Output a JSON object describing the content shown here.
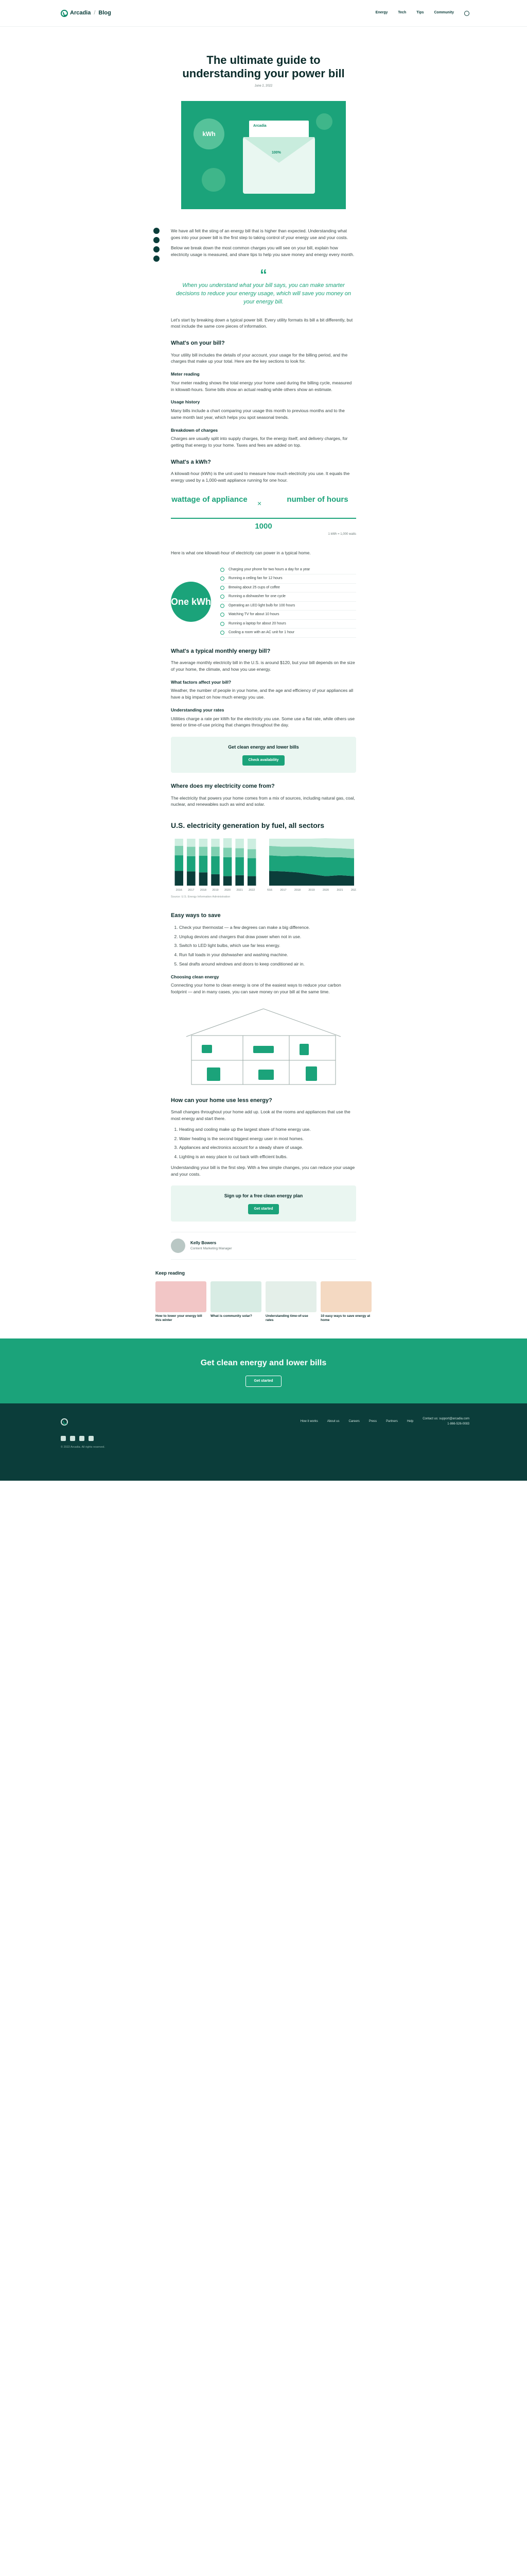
{
  "header": {
    "brand": "Arcadia",
    "section": "Blog",
    "nav": [
      "Energy",
      "Tech",
      "Tips",
      "Community"
    ]
  },
  "hero": {
    "title": "The ultimate guide to understanding your power bill",
    "date": "June 2, 2022"
  },
  "hero_art": {
    "kwh_label": "kWh",
    "bill_label": "Arcadia",
    "gauge_label": "100%"
  },
  "article": {
    "intro": [
      "We have all felt the sting of an energy bill that is higher than expected. Understanding what goes into your power bill is the first step to taking control of your energy use and your costs.",
      "Below we break down the most common charges you will see on your bill, explain how electricity usage is measured, and share tips to help you save money and energy every month."
    ],
    "quote": "When you understand what your bill says, you can make smarter decisions to reduce your energy usage, which will save you money on your energy bill.",
    "section_intro": "Let's start by breaking down a typical power bill. Every utility formats its bill a bit differently, but most include the same core pieces of information.",
    "h_read": "What's on your bill?",
    "read_text": "Your utility bill includes the details of your account, your usage for the billing period, and the charges that make up your total. Here are the key sections to look for.",
    "h_meter": "Meter reading",
    "meter_text": "Your meter reading shows the total energy your home used during the billing cycle, measured in kilowatt-hours. Some bills show an actual reading while others show an estimate.",
    "h_usage": "Usage history",
    "usage_text": "Many bills include a chart comparing your usage this month to previous months and to the same month last year, which helps you spot seasonal trends.",
    "h_breakdown": "Breakdown of charges",
    "breakdown_text": "Charges are usually split into supply charges, for the energy itself, and delivery charges, for getting that energy to your home. Taxes and fees are added on top.",
    "h_kwh": "What's a kWh?",
    "kwh_text": "A kilowatt-hour (kWh) is the unit used to measure how much electricity you use. It equals the energy used by a 1,000-watt appliance running for one hour.",
    "formula_left": "wattage of appliance",
    "formula_times": "×",
    "formula_right": "number of hours",
    "formula_den": "1000",
    "formula_note": "1 kWh = 1,000 watts",
    "kwh_after": "Here is what one kilowatt-hour of electricity can power in a typical home.",
    "kwh_circle": "One kWh",
    "kwh_items": [
      "Charging your phone for two hours a day for a year",
      "Running a ceiling fan for 12 hours",
      "Brewing about 25 cups of coffee",
      "Running a dishwasher for one cycle",
      "Operating an LED light bulb for 100 hours",
      "Watching TV for about 10 hours",
      "Running a laptop for about 20 hours",
      "Cooling a room with an AC unit for 1 hour"
    ],
    "h_average": "What's a typical monthly energy bill?",
    "average_text": "The average monthly electricity bill in the U.S. is around $120, but your bill depends on the size of your home, the climate, and how you use energy.",
    "h_factors": "What factors affect your bill?",
    "factors_text": "Weather, the number of people in your home, and the age and efficiency of your appliances all have a big impact on how much energy you use.",
    "h_rates": "Understanding your rates",
    "rates_text": "Utilities charge a rate per kWh for the electricity you use. Some use a flat rate, while others use tiered or time-of-use pricing that changes throughout the day.",
    "cta1_title": "Get clean energy and lower bills",
    "cta1_button": "Check availability",
    "h_sources": "Where does my electricity come from?",
    "sources_text": "The electricity that powers your home comes from a mix of sources, including natural gas, coal, nuclear, and renewables such as wind and solar.",
    "chart_title": "U.S. electricity generation by fuel, all sectors",
    "chart_source": "Source: U.S. Energy Information Administration",
    "h_save": "Easy ways to save",
    "save_list": [
      "Check your thermostat — a few degrees can make a big difference.",
      "Unplug devices and chargers that draw power when not in use.",
      "Switch to LED light bulbs, which use far less energy.",
      "Run full loads in your dishwasher and washing machine.",
      "Seal drafts around windows and doors to keep conditioned air in."
    ],
    "h_clean": "Choosing clean energy",
    "clean_text": "Connecting your home to clean energy is one of the easiest ways to reduce your carbon footprint — and in many cases, you can save money on your bill at the same time.",
    "h_home": "How can your home use less energy?",
    "home_text": "Small changes throughout your home add up. Look at the rooms and appliances that use the most energy and start there.",
    "home_list": [
      "Heating and cooling make up the largest share of home energy use.",
      "Water heating is the second biggest energy user in most homes.",
      "Appliances and electronics account for a steady share of usage.",
      "Lighting is an easy place to cut back with efficient bulbs."
    ],
    "closing": "Understanding your bill is the first step. With a few simple changes, you can reduce your usage and your costs.",
    "cta2_title": "Sign up for a free clean energy plan",
    "cta2_button": "Get started",
    "author_name": "Kelly Bowers",
    "author_role": "Content Marketing Manager"
  },
  "keep_reading": {
    "title": "Keep reading",
    "cards": [
      "How to lower your energy bill this winter",
      "What is community solar?",
      "Understanding time-of-use rates",
      "10 easy ways to save energy at home"
    ]
  },
  "banner": {
    "title": "Get clean energy and lower bills",
    "button": "Get started"
  },
  "footer": {
    "links": [
      "How it works",
      "About us",
      "Careers",
      "Press",
      "Partners",
      "Help"
    ],
    "contact": "Contact us: support@arcadia.com",
    "phone": "1-866-526-0083",
    "copyright": "© 2022 Arcadia. All rights reserved."
  },
  "chart_data": [
    {
      "type": "bar",
      "title": "U.S. electricity generation by fuel, all sectors",
      "xlabel": "",
      "ylabel": "",
      "categories": [
        "2016",
        "2017",
        "2018",
        "2019",
        "2020",
        "2021",
        "2022"
      ],
      "series": [
        {
          "name": "Coal",
          "values": [
            31,
            30,
            28,
            24,
            20,
            22,
            20
          ]
        },
        {
          "name": "Natural gas",
          "values": [
            33,
            32,
            35,
            38,
            40,
            38,
            38
          ]
        },
        {
          "name": "Nuclear",
          "values": [
            20,
            20,
            19,
            20,
            20,
            19,
            19
          ]
        },
        {
          "name": "Renewables",
          "values": [
            15,
            17,
            17,
            17,
            20,
            20,
            22
          ]
        }
      ],
      "ylim": [
        0,
        100
      ]
    },
    {
      "type": "area",
      "title": "",
      "xlabel": "",
      "ylabel": "",
      "categories": [
        "2016",
        "2017",
        "2018",
        "2019",
        "2020",
        "2021",
        "2022"
      ],
      "series": [
        {
          "name": "Coal",
          "values": [
            31,
            30,
            28,
            24,
            20,
            22,
            20
          ]
        },
        {
          "name": "Natural gas",
          "values": [
            33,
            32,
            35,
            38,
            40,
            38,
            38
          ]
        },
        {
          "name": "Nuclear",
          "values": [
            20,
            20,
            19,
            20,
            20,
            19,
            19
          ]
        },
        {
          "name": "Renewables",
          "values": [
            15,
            17,
            17,
            17,
            20,
            20,
            22
          ]
        }
      ],
      "ylim": [
        0,
        100
      ]
    }
  ],
  "colors": {
    "accent": "#1ba37a",
    "dark": "#0b3d3a"
  }
}
